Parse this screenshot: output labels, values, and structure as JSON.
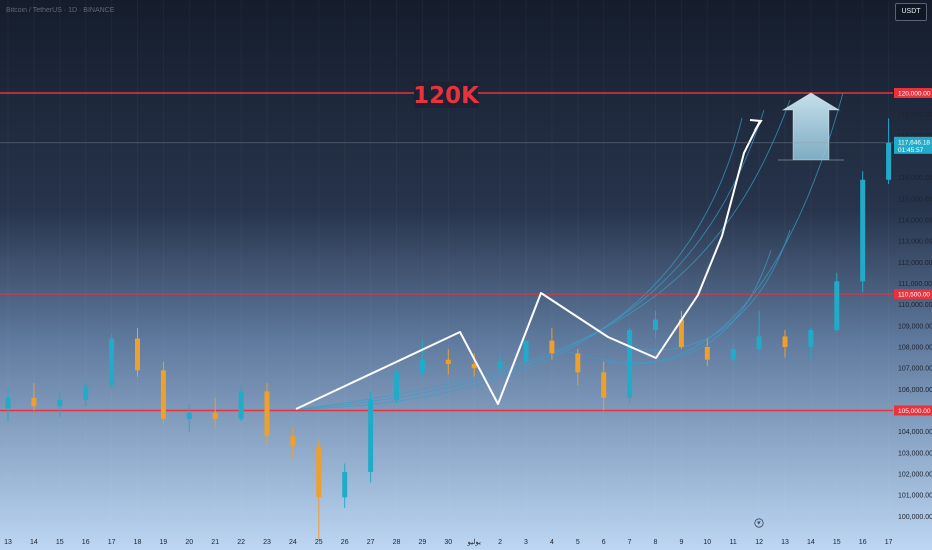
{
  "header": {
    "symbol_line": "Bitcoin / TetherUS · 1D · BINANCE",
    "currency": "USDT"
  },
  "annotations": {
    "target_text": "120K"
  },
  "colors": {
    "background_top": "#151d2c",
    "background_bottom": "#bcd6f3",
    "bull": "#22abc9",
    "bear": "#ef9f2c",
    "level_line": "#e8323e",
    "pattern_line": "#ffffff",
    "curve": "#3d9ec8",
    "arrow_fill": "#a9d4e6",
    "target_text": "#e8323e",
    "current_price_tag": "#22abc9"
  },
  "chart_data": {
    "type": "candlestick",
    "title": "",
    "xlabel": "",
    "ylabel": "",
    "x_tick_labels": [
      "13",
      "14",
      "15",
      "16",
      "17",
      "18",
      "19",
      "20",
      "21",
      "22",
      "23",
      "24",
      "25",
      "26",
      "27",
      "28",
      "29",
      "30",
      "يوليو",
      "2",
      "3",
      "4",
      "5",
      "6",
      "7",
      "8",
      "9",
      "10",
      "11",
      "12",
      "13",
      "14",
      "15",
      "16",
      "17"
    ],
    "y_tick_labels": [
      "100,000.00",
      "101,000.00",
      "102,000.00",
      "103,000.00",
      "104,000.00",
      "106,000.00",
      "107,000.00",
      "108,000.00",
      "109,000.00",
      "110,000.00",
      "111,000.00",
      "112,000.00",
      "113,000.00",
      "114,000.00",
      "115,000.00",
      "116,000.00",
      "118,000.00",
      "119,000.00"
    ],
    "ylim": [
      99500,
      122000
    ],
    "horizontal_levels": [
      {
        "price": 120000,
        "label": "120,000.00"
      },
      {
        "price": 110500,
        "label": "110,500.00"
      },
      {
        "price": 105000,
        "label": "105,000.00"
      }
    ],
    "current_price": {
      "price": 117646.18,
      "label": "117,646.18",
      "countdown": "01:45:57"
    },
    "ohlc": [
      [
        105100,
        106100,
        104500,
        105600
      ],
      [
        105600,
        106300,
        105000,
        105200
      ],
      [
        105200,
        105900,
        104700,
        105500
      ],
      [
        105500,
        106500,
        105200,
        106200
      ],
      [
        106200,
        108600,
        106000,
        108400
      ],
      [
        108400,
        108900,
        106600,
        106900
      ],
      [
        106900,
        107300,
        104400,
        104600
      ],
      [
        104600,
        105300,
        104000,
        104900
      ],
      [
        104900,
        105600,
        104200,
        104600
      ],
      [
        104600,
        106200,
        104500,
        105900
      ],
      [
        105900,
        106300,
        103400,
        103800
      ],
      [
        103800,
        104200,
        102700,
        103300
      ],
      [
        103300,
        103600,
        98900,
        100900
      ],
      [
        100900,
        102500,
        100400,
        102100
      ],
      [
        102100,
        105900,
        101600,
        105500
      ],
      [
        105500,
        106900,
        105300,
        106800
      ],
      [
        106800,
        108300,
        106600,
        107400
      ],
      [
        107400,
        107900,
        106700,
        107200
      ],
      [
        107200,
        107700,
        106600,
        107000
      ],
      [
        107000,
        107600,
        106800,
        107300
      ],
      [
        107300,
        108300,
        107200,
        108300
      ],
      [
        108300,
        108900,
        107400,
        107700
      ],
      [
        107700,
        107900,
        106200,
        106800
      ],
      [
        106800,
        107300,
        105000,
        105600
      ],
      [
        105600,
        108900,
        105300,
        108800
      ],
      [
        108800,
        109700,
        108400,
        109300
      ],
      [
        109300,
        109700,
        107900,
        108000
      ],
      [
        108000,
        108400,
        107100,
        107400
      ],
      [
        107400,
        108200,
        107200,
        107900
      ],
      [
        107900,
        109700,
        107700,
        108500
      ],
      [
        108500,
        108800,
        107500,
        108000
      ],
      [
        108000,
        108900,
        107400,
        108800
      ],
      [
        108800,
        111500,
        108700,
        111100
      ],
      [
        111100,
        116300,
        110600,
        115900
      ],
      [
        115900,
        118800,
        115700,
        117646
      ]
    ]
  }
}
